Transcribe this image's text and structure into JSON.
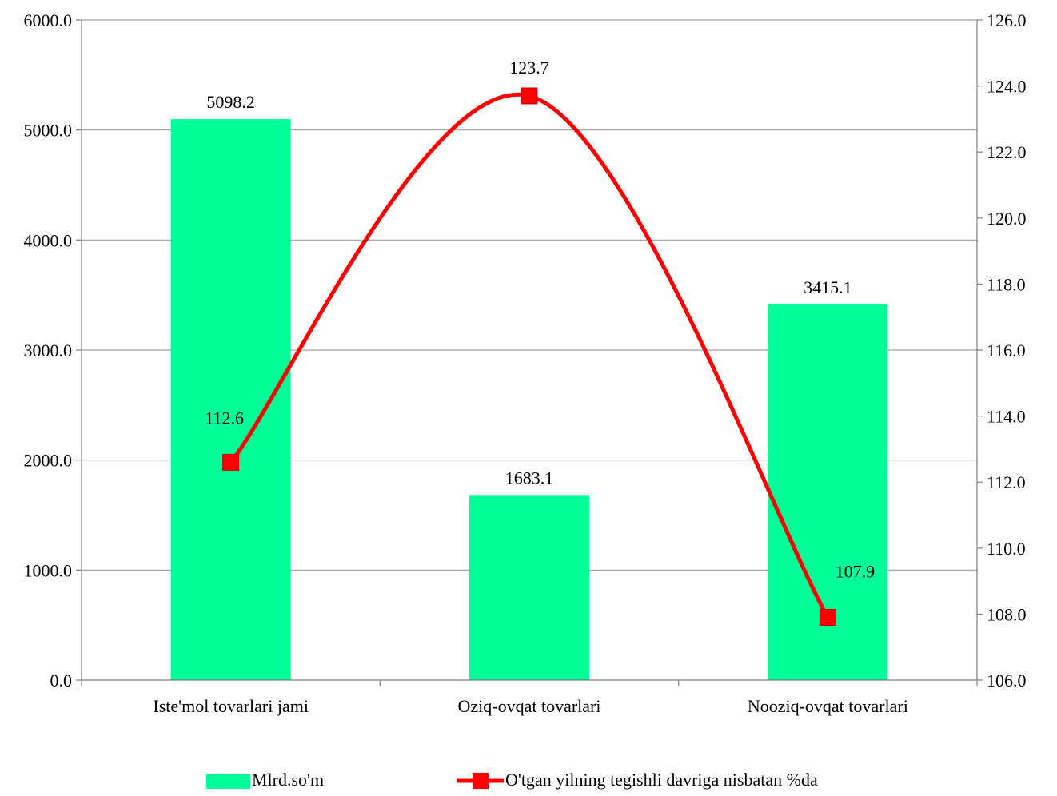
{
  "chart_data": {
    "type": "bar+line",
    "categories": [
      "Iste'mol tovarlari jami",
      "Oziq-ovqat tovarlari",
      "Nooziq-ovqat tovarlari"
    ],
    "series": [
      {
        "name": "Mlrd.so'm",
        "type": "bar",
        "axis": "left",
        "values": [
          5098.2,
          1683.1,
          3415.1
        ],
        "labels": [
          "5098.2",
          "1683.1",
          "3415.1"
        ],
        "color": "#00ff99"
      },
      {
        "name": "O'tgan yilning tegishli davriga nisbatan %da",
        "type": "line",
        "axis": "right",
        "smooth": true,
        "marker": "square",
        "values": [
          112.6,
          123.7,
          107.9
        ],
        "labels": [
          "112.6",
          "123.7",
          "107.9"
        ],
        "color": "#ff0000"
      }
    ],
    "y_left": {
      "ylim": [
        0,
        6000
      ],
      "ticks": [
        0,
        1000,
        2000,
        3000,
        4000,
        5000,
        6000
      ],
      "tick_labels": [
        "0.0",
        "1000.0",
        "2000.0",
        "3000.0",
        "4000.0",
        "5000.0",
        "6000.0"
      ]
    },
    "y_right": {
      "ylim": [
        106,
        126
      ],
      "ticks": [
        106,
        108,
        110,
        112,
        114,
        116,
        118,
        120,
        122,
        124,
        126
      ],
      "tick_labels": [
        "106.0",
        "108.0",
        "110.0",
        "112.0",
        "114.0",
        "116.0",
        "118.0",
        "120.0",
        "122.0",
        "124.0",
        "126.0"
      ]
    },
    "grid": true,
    "legend_position": "bottom",
    "colors": {
      "grid": "#a0a0a0",
      "axis": "#7f7f7f"
    }
  }
}
